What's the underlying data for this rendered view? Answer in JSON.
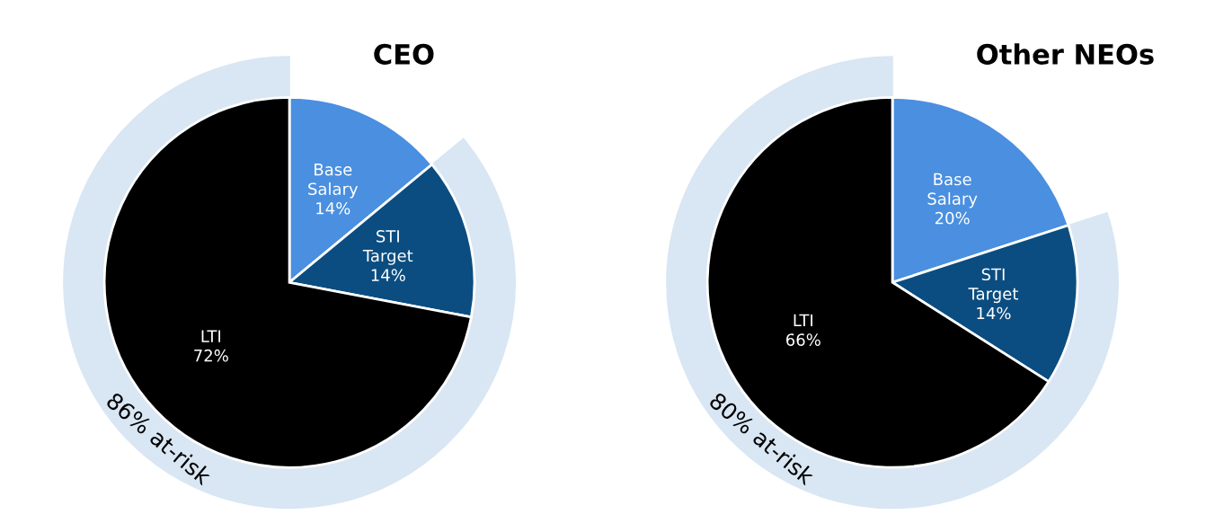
{
  "chart_data": [
    {
      "type": "pie",
      "title": "CEO",
      "categories": [
        "Base Salary",
        "STI Target",
        "LTI"
      ],
      "values": [
        14,
        14,
        72
      ],
      "value_labels": [
        "14%",
        "14%",
        "72%"
      ],
      "colors": [
        "#4a8fe0",
        "#0b4d80",
        "#000000"
      ],
      "annotations": [
        "86% at-risk"
      ]
    },
    {
      "type": "pie",
      "title": "Other NEOs",
      "categories": [
        "Base Salary",
        "STI Target",
        "LTI"
      ],
      "values": [
        20,
        14,
        66
      ],
      "value_labels": [
        "20%",
        "14%",
        "66%"
      ],
      "colors": [
        "#4a8fe0",
        "#0b4d80",
        "#000000"
      ],
      "annotations": [
        "80% at-risk"
      ]
    }
  ]
}
